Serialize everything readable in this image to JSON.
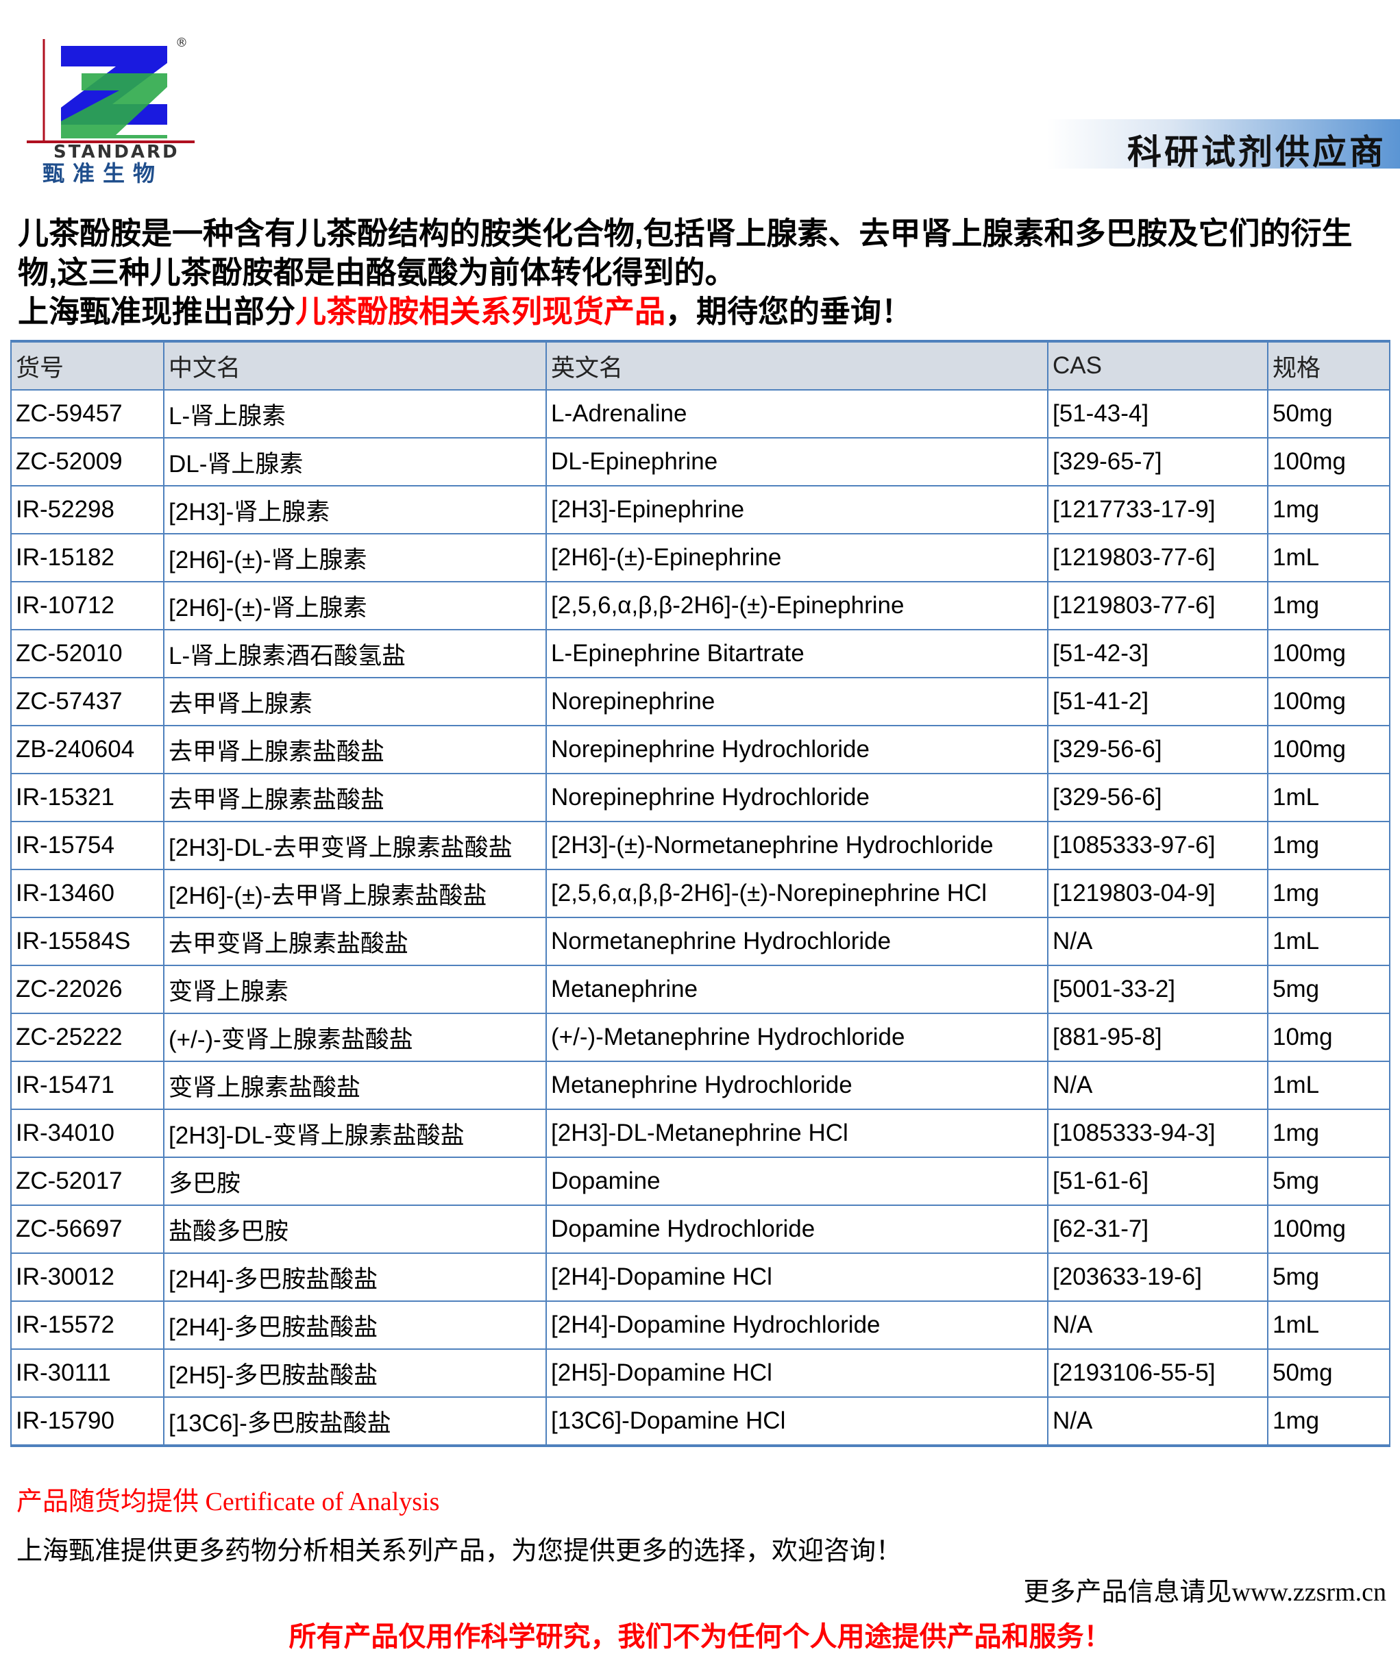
{
  "logo": {
    "brand_en": "STANDARD",
    "brand_cn": "甄准生物",
    "registered": "®",
    "colors": {
      "blue": "#1a1adf",
      "green": "#2eaa4a",
      "red": "#b01020",
      "cn_text": "#1f4e8c"
    }
  },
  "banner": {
    "text": "科研试剂供应商"
  },
  "intro": {
    "line1": "儿茶酚胺是一种含有儿茶酚结构的胺类化合物,包括肾上腺素、去甲肾上腺素和多巴胺及它们的衍生物,这三种儿茶酚胺都是由酪氨酸为前体转化得到的。",
    "line3_prefix": "上海甄准现推出部分",
    "line3_highlight": "儿茶酚胺相关系列现货产品",
    "line3_suffix": "，期待您的垂询！"
  },
  "table": {
    "headers": [
      "货号",
      "中文名",
      "英文名",
      "CAS",
      "规格"
    ],
    "rows": [
      [
        "ZC-59457",
        "L-肾上腺素",
        "L-Adrenaline",
        "[51-43-4]",
        "50mg"
      ],
      [
        "ZC-52009",
        "DL-肾上腺素",
        "DL-Epinephrine",
        "[329-65-7]",
        "100mg"
      ],
      [
        "IR-52298",
        "[2H3]-肾上腺素",
        "[2H3]-Epinephrine",
        "[1217733-17-9]",
        "1mg"
      ],
      [
        "IR-15182",
        "[2H6]-(±)-肾上腺素",
        "[2H6]-(±)-Epinephrine",
        "[1219803-77-6]",
        "1mL"
      ],
      [
        "IR-10712",
        "[2H6]-(±)-肾上腺素",
        "[2,5,6,α,β,β-2H6]-(±)-Epinephrine",
        "[1219803-77-6]",
        "1mg"
      ],
      [
        "ZC-52010",
        "L-肾上腺素酒石酸氢盐",
        "L-Epinephrine Bitartrate",
        "[51-42-3]",
        "100mg"
      ],
      [
        "ZC-57437",
        "去甲肾上腺素",
        "Norepinephrine",
        "[51-41-2]",
        "100mg"
      ],
      [
        "ZB-240604",
        "去甲肾上腺素盐酸盐",
        "Norepinephrine Hydrochloride",
        "[329-56-6]",
        "100mg"
      ],
      [
        "IR-15321",
        "去甲肾上腺素盐酸盐",
        "Norepinephrine Hydrochloride",
        "[329-56-6]",
        "1mL"
      ],
      [
        "IR-15754",
        "[2H3]-DL-去甲变肾上腺素盐酸盐",
        "[2H3]-(±)-Normetanephrine Hydrochloride",
        "[1085333-97-6]",
        "1mg"
      ],
      [
        "IR-13460",
        "[2H6]-(±)-去甲肾上腺素盐酸盐",
        "[2,5,6,α,β,β-2H6]-(±)-Norepinephrine HCl",
        "[1219803-04-9]",
        "1mg"
      ],
      [
        "IR-15584S",
        "去甲变肾上腺素盐酸盐",
        "Normetanephrine Hydrochloride",
        "N/A",
        "1mL"
      ],
      [
        "ZC-22026",
        "变肾上腺素",
        "Metanephrine",
        "[5001-33-2]",
        "5mg"
      ],
      [
        "ZC-25222",
        "(+/-)-变肾上腺素盐酸盐",
        "(+/-)-Metanephrine Hydrochloride",
        "[881-95-8]",
        "10mg"
      ],
      [
        "IR-15471",
        "变肾上腺素盐酸盐",
        "Metanephrine Hydrochloride",
        "N/A",
        "1mL"
      ],
      [
        "IR-34010",
        "[2H3]-DL-变肾上腺素盐酸盐",
        "[2H3]-DL-Metanephrine HCl",
        "[1085333-94-3]",
        "1mg"
      ],
      [
        "ZC-52017",
        "多巴胺",
        "Dopamine",
        "[51-61-6]",
        "5mg"
      ],
      [
        "ZC-56697",
        "盐酸多巴胺",
        "Dopamine Hydrochloride",
        "[62-31-7]",
        "100mg"
      ],
      [
        "IR-30012",
        "[2H4]-多巴胺盐酸盐",
        "[2H4]-Dopamine HCl",
        "[203633-19-6]",
        "5mg"
      ],
      [
        "IR-15572",
        "[2H4]-多巴胺盐酸盐",
        "[2H4]-Dopamine Hydrochloride",
        "N/A",
        "1mL"
      ],
      [
        "IR-30111",
        "[2H5]-多巴胺盐酸盐",
        "[2H5]-Dopamine HCl",
        "[2193106-55-5]",
        "50mg"
      ],
      [
        "IR-15790",
        "[13C6]-多巴胺盐酸盐",
        "[13C6]-Dopamine HCl",
        "N/A",
        "1mg"
      ]
    ]
  },
  "footer": {
    "coa": "产品随货均提供 Certificate of Analysis",
    "more": "上海甄准提供更多药物分析相关系列产品，为您提供更多的选择，欢迎咨询！",
    "website": "更多产品信息请见www.zzsrm.cn",
    "disclaimer": "所有产品仅用作科学研究，我们不为任何个人用途提供产品和服务！"
  }
}
